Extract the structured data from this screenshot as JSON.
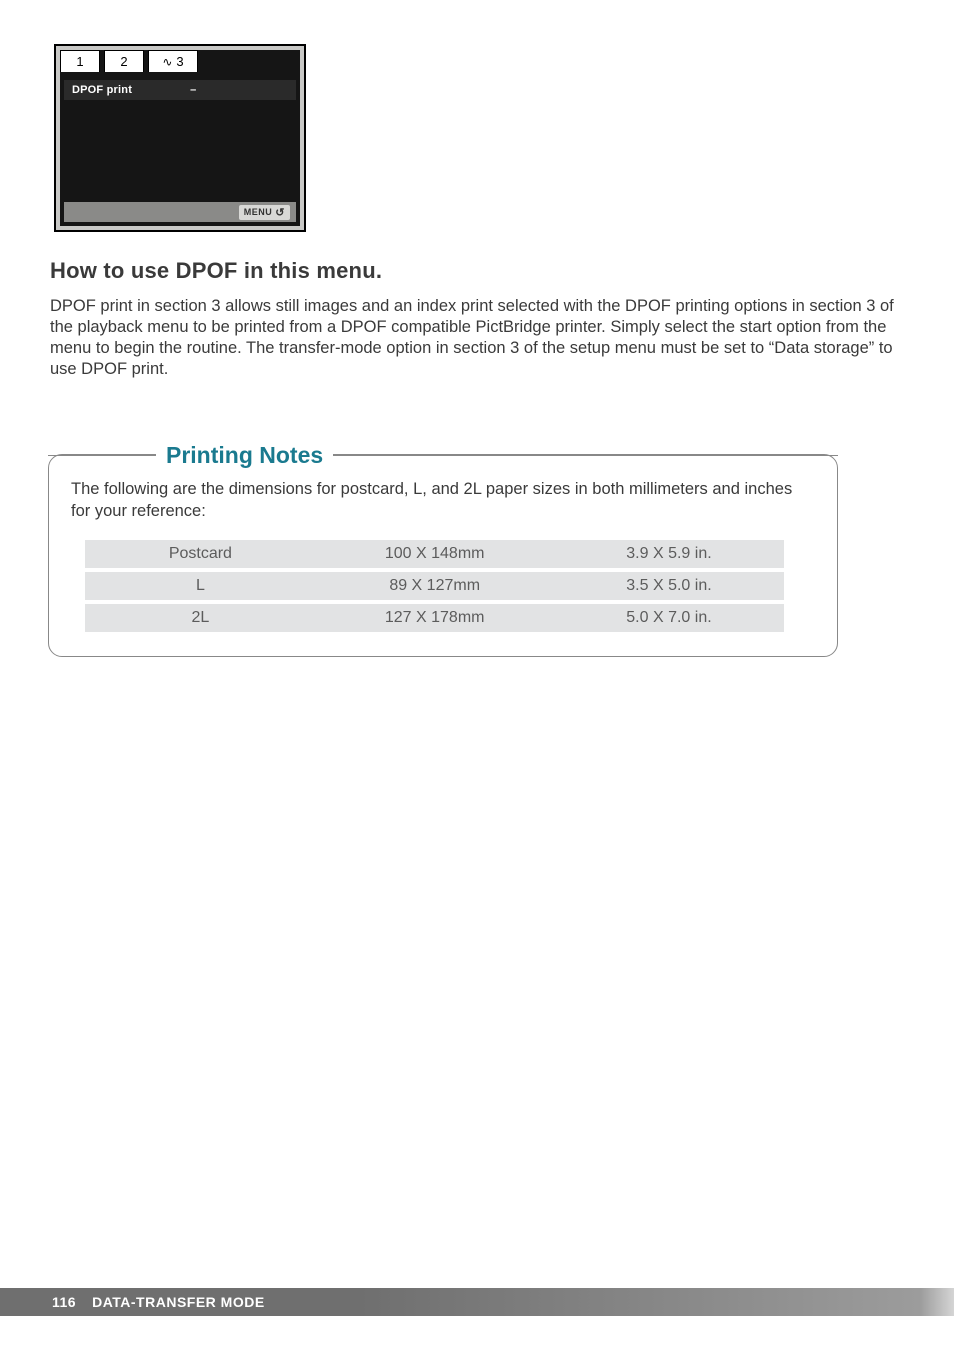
{
  "lcd": {
    "tabs": [
      "1",
      "2",
      "3"
    ],
    "tab3_icon": "∿",
    "row_label": "DPOF print",
    "row_value": "–",
    "menu_chip": "MENU",
    "menu_return_glyph": "↺",
    "bg_color": "#151515",
    "bar_color": "#8a8a88"
  },
  "section_heading": "How to use DPOF in this menu.",
  "section_body": "DPOF print in section 3 allows still images and an index print selected with the DPOF printing options in section 3 of the playback menu to be printed from a DPOF compatible PictBridge printer. Simply select the start option from the menu to begin the routine. The transfer-mode option in section 3 of the setup menu must be set to “Data storage” to use DPOF print.",
  "notes": {
    "title": "Printing Notes",
    "title_color": "#1a7a8f",
    "intro": "The following are the dimensions for postcard, L, and 2L paper sizes in both millimeters and inches for your reference:",
    "rows": [
      {
        "name": "Postcard",
        "mm": "100 X 148mm",
        "in": "3.9 X 5.9 in."
      },
      {
        "name": "L",
        "mm": "89 X 127mm",
        "in": "3.5 X 5.0 in."
      },
      {
        "name": "2L",
        "mm": "127 X 178mm",
        "in": "5.0 X 7.0 in."
      }
    ],
    "row_bg": "#e2e3e4"
  },
  "footer": {
    "page_number": "116",
    "section": "DATA-TRANSFER MODE"
  }
}
